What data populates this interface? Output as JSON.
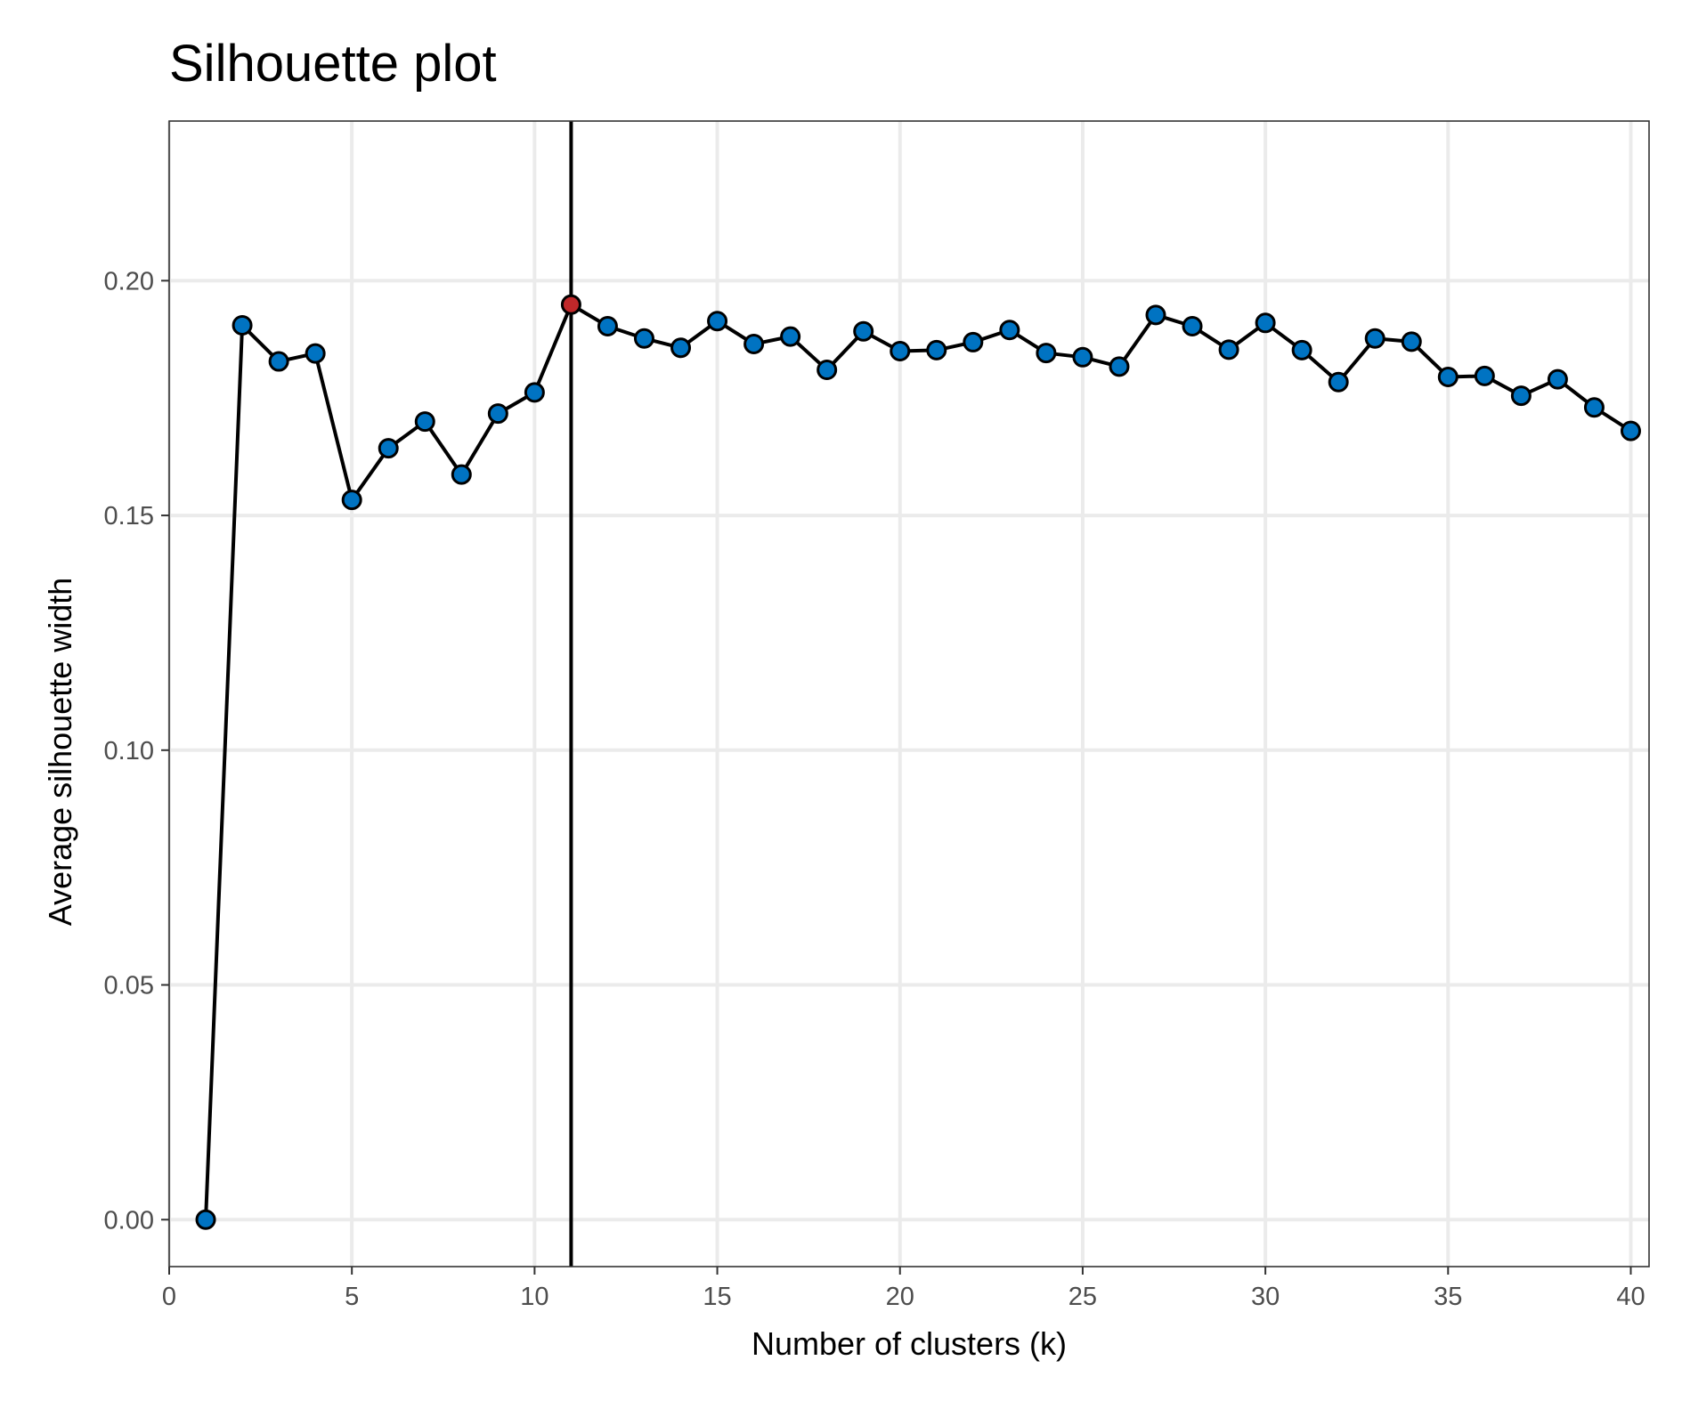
{
  "chart_data": {
    "type": "line",
    "title": "Silhouette plot",
    "xlabel": "Number of clusters (k)",
    "ylabel": "Average silhouette width",
    "xlim": [
      0,
      40.5
    ],
    "ylim": [
      -0.01,
      0.234
    ],
    "x_ticks": [
      0,
      5,
      10,
      15,
      20,
      25,
      30,
      35,
      40
    ],
    "x_tick_labels": [
      "0",
      "5",
      "10",
      "15",
      "20",
      "25",
      "30",
      "35",
      "40"
    ],
    "y_ticks": [
      0.0,
      0.05,
      0.1,
      0.15,
      0.2
    ],
    "y_tick_labels": [
      "0.00",
      "0.05",
      "0.10",
      "0.15",
      "0.20"
    ],
    "grid": true,
    "optimal_k": 11,
    "x": [
      1,
      2,
      3,
      4,
      5,
      6,
      7,
      8,
      9,
      10,
      11,
      12,
      13,
      14,
      15,
      16,
      17,
      18,
      19,
      20,
      21,
      22,
      23,
      24,
      25,
      26,
      27,
      28,
      29,
      30,
      31,
      32,
      33,
      34,
      35,
      36,
      37,
      38,
      39,
      40
    ],
    "values": [
      0.0,
      0.1905,
      0.1828,
      0.1845,
      0.1533,
      0.1643,
      0.17,
      0.1587,
      0.1717,
      0.1762,
      0.1949,
      0.1903,
      0.1877,
      0.1857,
      0.1914,
      0.1865,
      0.1881,
      0.181,
      0.1892,
      0.185,
      0.1852,
      0.1869,
      0.1895,
      0.1846,
      0.1837,
      0.1817,
      0.1927,
      0.1903,
      0.1853,
      0.191,
      0.1852,
      0.1784,
      0.1877,
      0.187,
      0.1795,
      0.1797,
      0.1755,
      0.179,
      0.173,
      0.168
    ],
    "colors": {
      "point": "#0073C2",
      "highlight_point": "#C0282A",
      "line": "#000000",
      "vline": "#000000",
      "grid": "#EBEBEB",
      "panel_border": "#333333"
    }
  }
}
